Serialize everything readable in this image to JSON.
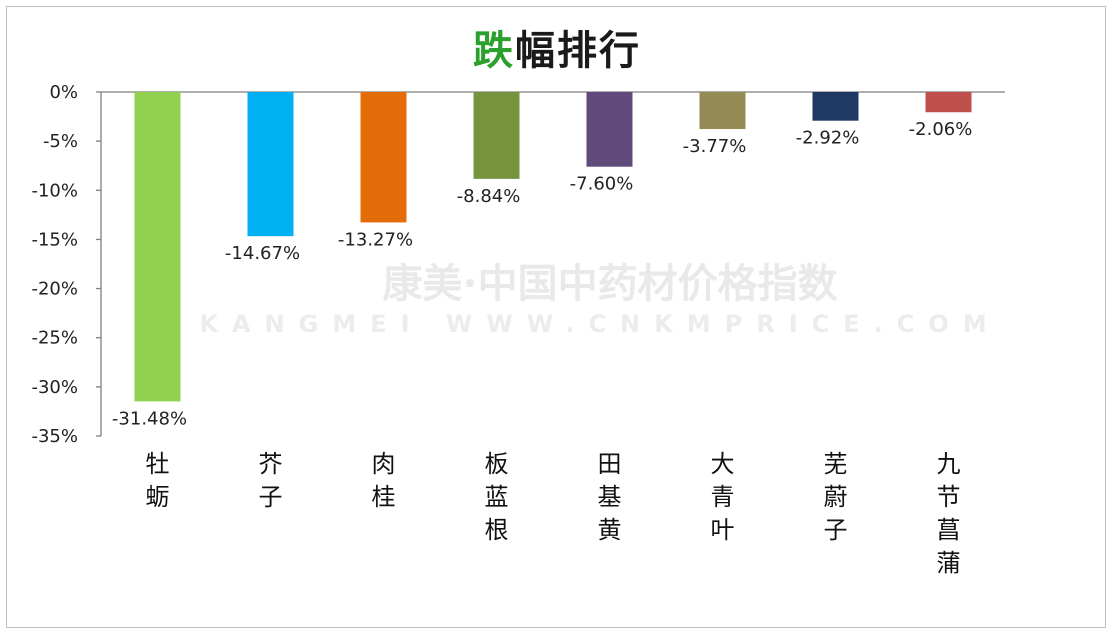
{
  "chart_data": {
    "type": "bar",
    "title_part1": "跌",
    "title_part2": "幅排行",
    "categories": [
      "牡蛎",
      "芥子",
      "肉桂",
      "板蓝根",
      "田基黄",
      "大青叶",
      "芜蔚子",
      "九节菖蒲"
    ],
    "values": [
      -31.48,
      -14.67,
      -13.27,
      -8.84,
      -7.6,
      -3.77,
      -2.92,
      -2.06
    ],
    "value_labels": [
      "-31.48%",
      "-14.67%",
      "-13.27%",
      "-8.84%",
      "-7.60%",
      "-3.77%",
      "-2.92%",
      "-2.06%"
    ],
    "colors": [
      "#92d050",
      "#00b0f0",
      "#e36c09",
      "#77933c",
      "#604a7b",
      "#948a54",
      "#1f3864",
      "#c0504d"
    ],
    "yticks": [
      0,
      -5,
      -10,
      -15,
      -20,
      -25,
      -30,
      -35
    ],
    "ytick_labels": [
      "0%",
      "-5%",
      "-10%",
      "-15%",
      "-20%",
      "-25%",
      "-30%",
      "-35%"
    ],
    "ylim": [
      -35,
      0
    ],
    "xlabel": "",
    "ylabel": "",
    "grid": false,
    "title_colors": {
      "part1": "#2ca02c",
      "part2": "#1a1a1a"
    }
  },
  "watermark": {
    "line1": "康美·中国中药材价格指数",
    "line2": "KANGMEI  WWW.CNKMPRICE.COM"
  }
}
